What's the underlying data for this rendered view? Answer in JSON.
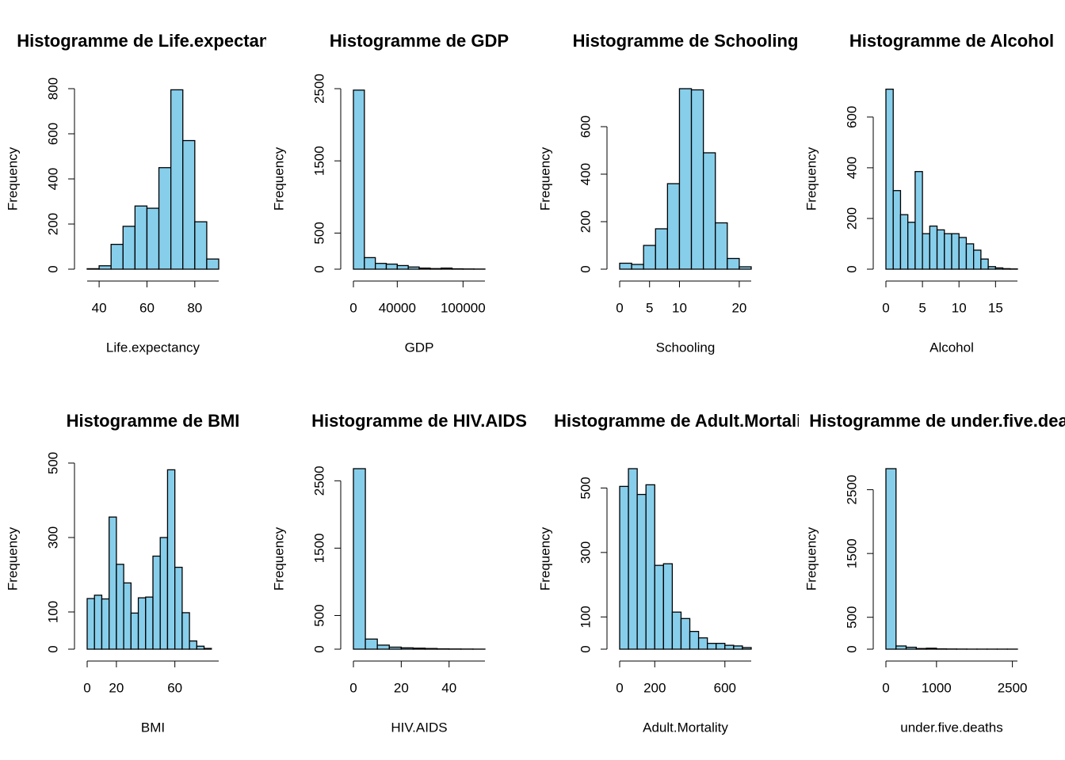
{
  "chart_data": [
    {
      "type": "histogram",
      "title": "Histogramme de Life.expectancy",
      "xlabel": "Life.expectancy",
      "ylabel": "Frequency",
      "bins": [
        35,
        40,
        45,
        50,
        55,
        60,
        65,
        70,
        75,
        80,
        85,
        90
      ],
      "values": [
        2,
        15,
        110,
        190,
        280,
        270,
        450,
        795,
        570,
        210,
        45
      ],
      "color": "#87ceeb",
      "xlim": [
        35,
        90
      ],
      "ylim": [
        0,
        800
      ],
      "xticks": [
        40,
        60,
        80
      ],
      "yticks": [
        0,
        200,
        400,
        600,
        800
      ]
    },
    {
      "type": "histogram",
      "title": "Histogramme de GDP",
      "xlabel": "GDP",
      "ylabel": "Frequency",
      "bins": [
        0,
        10000,
        20000,
        30000,
        40000,
        50000,
        60000,
        70000,
        80000,
        90000,
        100000,
        110000,
        120000
      ],
      "values": [
        2480,
        160,
        80,
        70,
        50,
        30,
        15,
        8,
        15,
        5,
        3,
        2
      ],
      "color": "#87ceeb",
      "xlim": [
        0,
        120000
      ],
      "ylim": [
        0,
        2500
      ],
      "xticks": [
        0,
        40000,
        100000
      ],
      "yticks": [
        0,
        500,
        1500,
        2500
      ]
    },
    {
      "type": "histogram",
      "title": "Histogramme de Schooling",
      "xlabel": "Schooling",
      "ylabel": "Frequency",
      "bins": [
        0,
        2,
        4,
        6,
        8,
        10,
        12,
        14,
        16,
        18,
        20,
        22
      ],
      "values": [
        25,
        20,
        100,
        170,
        360,
        760,
        755,
        490,
        195,
        45,
        10
      ],
      "color": "#87ceeb",
      "xlim": [
        0,
        22
      ],
      "ylim": [
        0,
        760
      ],
      "xticks": [
        0,
        5,
        10,
        20
      ],
      "yticks": [
        0,
        200,
        400,
        600
      ]
    },
    {
      "type": "histogram",
      "title": "Histogramme de Alcohol",
      "xlabel": "Alcohol",
      "ylabel": "Frequency",
      "bins": [
        0,
        1,
        2,
        3,
        4,
        5,
        6,
        7,
        8,
        9,
        10,
        11,
        12,
        13,
        14,
        15,
        16,
        17,
        18
      ],
      "values": [
        710,
        310,
        215,
        185,
        385,
        140,
        170,
        155,
        140,
        140,
        125,
        100,
        75,
        40,
        10,
        5,
        2,
        1
      ],
      "color": "#87ceeb",
      "xlim": [
        0,
        18
      ],
      "ylim": [
        0,
        712
      ],
      "xticks": [
        0,
        5,
        10,
        15
      ],
      "yticks": [
        0,
        200,
        400,
        600
      ]
    },
    {
      "type": "histogram",
      "title": "Histogramme de BMI",
      "xlabel": "BMI",
      "ylabel": "Frequency",
      "bins": [
        0,
        5,
        10,
        15,
        20,
        25,
        30,
        35,
        40,
        45,
        50,
        55,
        60,
        65,
        70,
        75,
        80,
        85
      ],
      "values": [
        136,
        145,
        135,
        355,
        228,
        178,
        97,
        138,
        140,
        250,
        300,
        482,
        220,
        98,
        22,
        8,
        2
      ],
      "color": "#87ceeb",
      "xlim": [
        0,
        90
      ],
      "ylim": [
        0,
        485
      ],
      "xticks": [
        0,
        20,
        60
      ],
      "yticks": [
        0,
        100,
        300,
        500
      ]
    },
    {
      "type": "histogram",
      "title": "Histogramme de HIV.AIDS",
      "xlabel": "HIV.AIDS",
      "ylabel": "Frequency",
      "bins": [
        0,
        5,
        10,
        15,
        20,
        25,
        30,
        35,
        40,
        45,
        50,
        55
      ],
      "values": [
        2680,
        150,
        60,
        30,
        20,
        15,
        10,
        5,
        3,
        2,
        1
      ],
      "color": "#87ceeb",
      "xlim": [
        0,
        55
      ],
      "ylim": [
        0,
        2680
      ],
      "xticks": [
        0,
        20,
        40
      ],
      "yticks": [
        0,
        500,
        1500,
        2500
      ]
    },
    {
      "type": "histogram",
      "title": "Histogramme de Adult.Mortality",
      "xlabel": "Adult.Mortality",
      "ylabel": "Frequency",
      "bins": [
        0,
        50,
        100,
        150,
        200,
        250,
        300,
        350,
        400,
        450,
        500,
        550,
        600,
        650,
        700,
        750
      ],
      "values": [
        505,
        560,
        480,
        510,
        260,
        265,
        115,
        95,
        55,
        35,
        18,
        18,
        12,
        10,
        5
      ],
      "color": "#87ceeb",
      "xlim": [
        0,
        750
      ],
      "ylim": [
        0,
        560
      ],
      "xticks": [
        0,
        200,
        600
      ],
      "yticks": [
        0,
        100,
        300,
        500
      ]
    },
    {
      "type": "histogram",
      "title": "Histogramme de under.five.deaths",
      "xlabel": "under.five.deaths",
      "ylabel": "Frequency",
      "bins": [
        0,
        200,
        400,
        600,
        800,
        1000,
        1200,
        1400,
        1600,
        1800,
        2000,
        2200,
        2400,
        2600
      ],
      "values": [
        2830,
        50,
        30,
        10,
        15,
        5,
        3,
        2,
        1,
        1,
        1,
        1,
        1
      ],
      "color": "#87ceeb",
      "xlim": [
        0,
        2600
      ],
      "ylim": [
        0,
        2830
      ],
      "xticks": [
        0,
        1000,
        2500
      ],
      "yticks": [
        0,
        500,
        1500,
        2500
      ]
    }
  ]
}
